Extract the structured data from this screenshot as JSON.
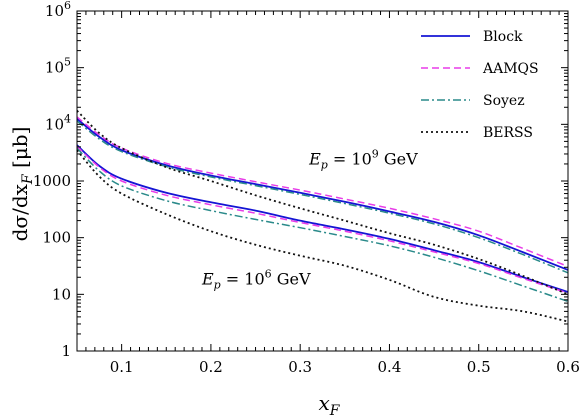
{
  "chart_data": {
    "type": "line",
    "title": "",
    "xlabel": {
      "main": "x",
      "sub": "F"
    },
    "ylabel": {
      "pre": "dσ/dx",
      "sub": "F",
      "post": " [μb]"
    },
    "xlim": [
      0.05,
      0.6
    ],
    "ylim": [
      1,
      1000000
    ],
    "yscale": "log",
    "grid": false,
    "legend_position": "top-right",
    "x_ticks": [
      0.1,
      0.2,
      0.3,
      0.4,
      0.5,
      0.6
    ],
    "x_tick_labels": [
      "0.1",
      "0.2",
      "0.3",
      "0.4",
      "0.5",
      "0.6"
    ],
    "y_ticks": [
      {
        "value": 1,
        "label": "1",
        "exp": ""
      },
      {
        "value": 10,
        "label": "10",
        "exp": ""
      },
      {
        "value": 100,
        "label": "100",
        "exp": ""
      },
      {
        "value": 1000,
        "label": "1000",
        "exp": ""
      },
      {
        "value": 10000,
        "label": "10",
        "exp": "4"
      },
      {
        "value": 100000,
        "label": "10",
        "exp": "5"
      },
      {
        "value": 1000000,
        "label": "10",
        "exp": "6"
      }
    ],
    "annotations": [
      {
        "id": "e9",
        "pre": "E",
        "sub": "p",
        "mid": " = 10",
        "sup": "9",
        "post": " GeV",
        "x": 0.31,
        "y": 1950
      },
      {
        "id": "e6",
        "pre": "E",
        "sub": "p",
        "mid": " = 10",
        "sup": "6",
        "post": " GeV",
        "x": 0.19,
        "y": 15
      }
    ],
    "series": [
      {
        "name": "Block",
        "color": "#1414d4",
        "dash": "",
        "width": 1.8,
        "curves": [
          {
            "energy": "1e9 GeV",
            "x": [
              0.05,
              0.075,
              0.1,
              0.15,
              0.2,
              0.25,
              0.3,
              0.35,
              0.4,
              0.45,
              0.5,
              0.55,
              0.6
            ],
            "y": [
              12500,
              6000,
              3500,
              1900,
              1250,
              880,
              620,
              430,
              290,
              190,
              110,
              55,
              27
            ]
          },
          {
            "energy": "1e6 GeV",
            "x": [
              0.05,
              0.075,
              0.1,
              0.15,
              0.2,
              0.25,
              0.3,
              0.35,
              0.4,
              0.45,
              0.5,
              0.55,
              0.6
            ],
            "y": [
              4300,
              1850,
              1100,
              620,
              420,
              300,
              200,
              140,
              95,
              60,
              37,
              20,
              11
            ]
          }
        ]
      },
      {
        "name": "AAMQS",
        "color": "#e83ce8",
        "dash": "7,4",
        "width": 1.5,
        "curves": [
          {
            "energy": "1e9 GeV",
            "x": [
              0.05,
              0.075,
              0.1,
              0.15,
              0.2,
              0.25,
              0.3,
              0.35,
              0.4,
              0.45,
              0.5,
              0.55,
              0.6
            ],
            "y": [
              13500,
              6500,
              3800,
              2050,
              1380,
              970,
              690,
              480,
              330,
              215,
              130,
              64,
              31
            ]
          },
          {
            "energy": "1e6 GeV",
            "x": [
              0.05,
              0.075,
              0.1,
              0.15,
              0.2,
              0.25,
              0.3,
              0.35,
              0.4,
              0.45,
              0.5,
              0.55,
              0.6
            ],
            "y": [
              4100,
              1750,
              1000,
              560,
              380,
              270,
              185,
              130,
              88,
              56,
              35,
              19,
              10.5
            ]
          }
        ]
      },
      {
        "name": "Soyez",
        "color": "#2a8a8a",
        "dash": "8,3,2,3",
        "width": 1.5,
        "curves": [
          {
            "energy": "1e9 GeV",
            "x": [
              0.05,
              0.075,
              0.1,
              0.15,
              0.2,
              0.25,
              0.3,
              0.35,
              0.4,
              0.45,
              0.5,
              0.55,
              0.6
            ],
            "y": [
              11500,
              5500,
              3300,
              1800,
              1180,
              830,
              580,
              400,
              270,
              175,
              100,
              50,
              24
            ]
          },
          {
            "energy": "1e6 GeV",
            "x": [
              0.05,
              0.075,
              0.1,
              0.15,
              0.2,
              0.25,
              0.3,
              0.35,
              0.4,
              0.45,
              0.5,
              0.55,
              0.6
            ],
            "y": [
              3800,
              1500,
              820,
              450,
              300,
              210,
              150,
              105,
              72,
              45,
              26,
              14,
              7.5
            ]
          }
        ]
      },
      {
        "name": "BERSS",
        "color": "#111111",
        "dash": "2,3",
        "width": 1.8,
        "curves": [
          {
            "energy": "1e9 GeV",
            "x": [
              0.05,
              0.075,
              0.1,
              0.15,
              0.2,
              0.25,
              0.3,
              0.35,
              0.4,
              0.45,
              0.5,
              0.55,
              0.6
            ],
            "y": [
              17500,
              7000,
              3800,
              1750,
              1000,
              560,
              330,
              200,
              120,
              75,
              42,
              21,
              10
            ]
          },
          {
            "energy": "1e6 GeV",
            "x": [
              0.05,
              0.075,
              0.1,
              0.15,
              0.2,
              0.25,
              0.3,
              0.35,
              0.4,
              0.45,
              0.5,
              0.55,
              0.6
            ],
            "y": [
              3500,
              1200,
              600,
              260,
              130,
              75,
              48,
              32,
              18,
              9,
              6.3,
              5,
              3.3
            ]
          }
        ]
      }
    ]
  }
}
